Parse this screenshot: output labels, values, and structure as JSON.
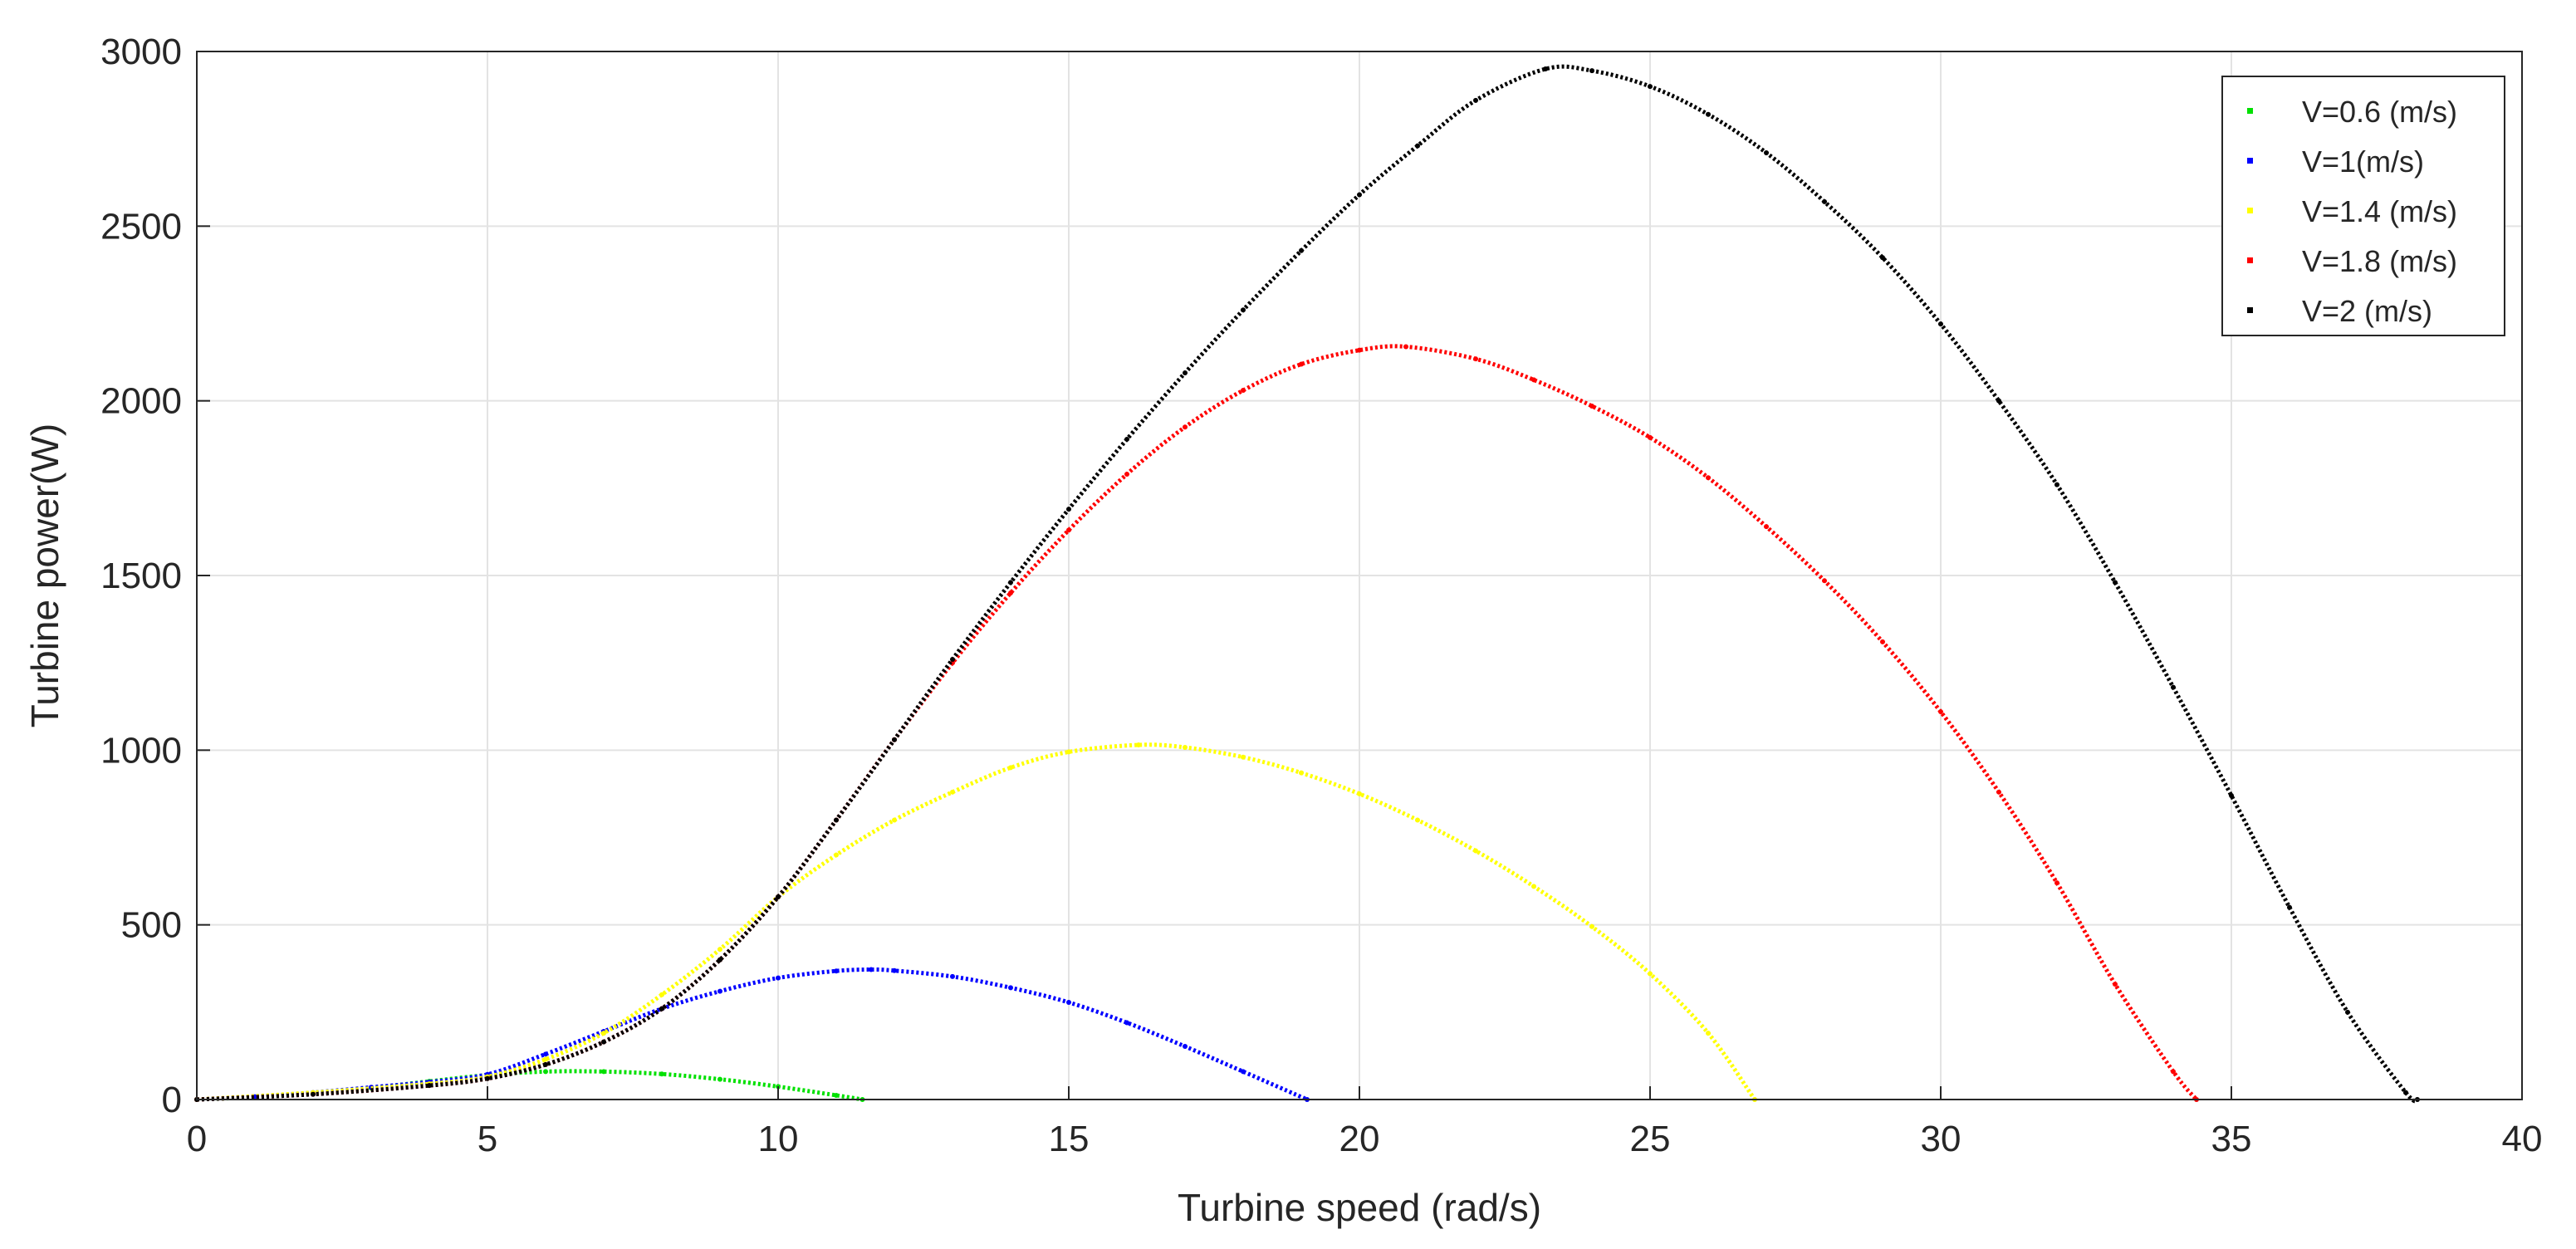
{
  "chart_data": {
    "type": "scatter",
    "title": "",
    "xlabel": "Turbine speed (rad/s)",
    "ylabel": "Turbine power(W)",
    "xlim": [
      0,
      40
    ],
    "ylim": [
      0,
      3000
    ],
    "x_ticks": [
      0,
      5,
      10,
      15,
      20,
      25,
      30,
      35,
      40
    ],
    "y_ticks": [
      0,
      500,
      1000,
      1500,
      2000,
      2500,
      3000
    ],
    "x_tick_labels": [
      "0",
      "5",
      "10",
      "15",
      "20",
      "25",
      "30",
      "35",
      "40"
    ],
    "y_tick_labels": [
      "0",
      "500",
      "1000",
      "1500",
      "2000",
      "2500",
      "3000"
    ],
    "grid": true,
    "legend_position": "top-right",
    "series": [
      {
        "name": "V=0.6 (m/s)",
        "color": "#00e000",
        "x": [
          0,
          1,
          2,
          3,
          4,
          5,
          6,
          7,
          8,
          9,
          10,
          11,
          11.45
        ],
        "y": [
          0,
          7,
          18,
          33,
          52,
          70,
          80,
          80,
          73,
          58,
          37,
          12,
          0
        ]
      },
      {
        "name": "V=1(m/s)",
        "color": "#0000ff",
        "x": [
          0,
          1,
          2,
          3,
          4,
          5,
          6,
          7,
          8,
          9,
          10,
          11,
          11.6,
          12,
          13,
          14,
          15,
          16,
          17,
          18,
          19.1
        ],
        "y": [
          0,
          8,
          20,
          35,
          50,
          72,
          130,
          195,
          260,
          310,
          348,
          368,
          372,
          369,
          352,
          320,
          278,
          220,
          152,
          80,
          0
        ]
      },
      {
        "name": "V=1.4 (m/s)",
        "color": "#ffff00",
        "x": [
          0,
          2,
          4,
          5,
          6,
          7,
          8,
          9,
          10,
          11,
          12,
          13,
          14,
          15,
          16.2,
          17,
          18,
          19,
          20,
          21,
          22,
          23,
          24,
          25,
          26,
          26.8
        ],
        "y": [
          0,
          20,
          45,
          65,
          115,
          190,
          300,
          430,
          580,
          700,
          800,
          880,
          950,
          995,
          1015,
          1008,
          980,
          935,
          875,
          800,
          712,
          610,
          495,
          360,
          190,
          0
        ]
      },
      {
        "name": "V=1.8 (m/s)",
        "color": "#ff0000",
        "x": [
          0,
          2,
          4,
          5,
          6,
          7,
          8,
          9,
          10,
          11,
          12,
          13,
          14,
          15,
          16,
          17,
          18,
          19,
          20,
          20.8,
          22,
          23,
          24,
          25,
          26,
          27,
          28,
          29,
          30,
          31,
          32,
          33,
          34,
          34.4
        ],
        "y": [
          0,
          15,
          40,
          60,
          100,
          165,
          260,
          400,
          580,
          800,
          1030,
          1250,
          1450,
          1630,
          1790,
          1925,
          2030,
          2105,
          2145,
          2155,
          2120,
          2060,
          1985,
          1895,
          1780,
          1640,
          1485,
          1310,
          1110,
          880,
          620,
          330,
          80,
          0
        ]
      },
      {
        "name": "V=2 (m/s)",
        "color": "#000000",
        "x": [
          0,
          2,
          4,
          5,
          6,
          7,
          8,
          9,
          10,
          11,
          12,
          13,
          14,
          15,
          16,
          17,
          18,
          19,
          20,
          21,
          22,
          23.2,
          24,
          25,
          26,
          27,
          28,
          29,
          30,
          31,
          32,
          33,
          34,
          35,
          36,
          37,
          38,
          38.2
        ],
        "y": [
          0,
          15,
          40,
          60,
          100,
          165,
          260,
          400,
          580,
          800,
          1030,
          1260,
          1480,
          1690,
          1890,
          2080,
          2260,
          2430,
          2590,
          2730,
          2860,
          2950,
          2945,
          2900,
          2820,
          2710,
          2570,
          2410,
          2220,
          2000,
          1760,
          1480,
          1180,
          870,
          550,
          250,
          20,
          0
        ]
      }
    ]
  }
}
